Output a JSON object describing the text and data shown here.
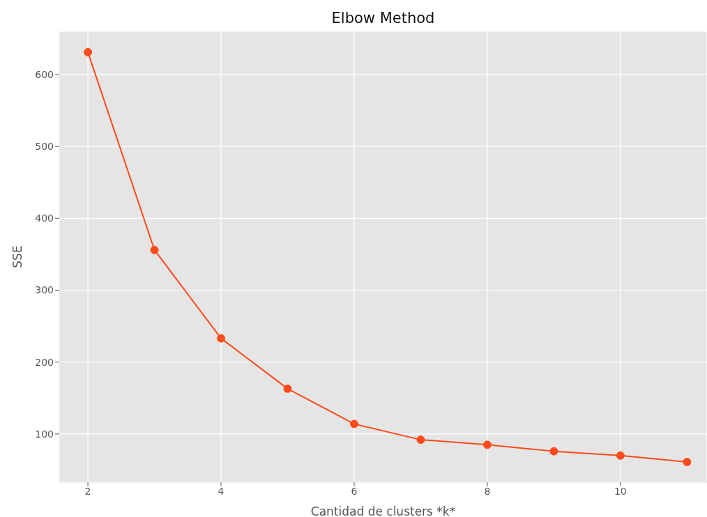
{
  "chart_data": {
    "type": "line",
    "title": "Elbow Method",
    "xlabel": "Cantidad de clusters *k*",
    "ylabel": "SSE",
    "x": [
      2,
      3,
      4,
      5,
      6,
      7,
      8,
      9,
      10,
      11
    ],
    "series": [
      {
        "color": "#fc4a1a",
        "values": [
          631,
          356,
          233,
          163,
          114,
          92,
          85,
          76,
          70,
          61
        ]
      }
    ],
    "xlim": [
      1.57,
      11.3
    ],
    "xticks": [
      2,
      4,
      6,
      8,
      10
    ],
    "ylim": [
      33,
      660
    ],
    "yticks": [
      100,
      200,
      300,
      400,
      500,
      600
    ],
    "grid": true,
    "marker": "circle",
    "line_style": "solid"
  }
}
